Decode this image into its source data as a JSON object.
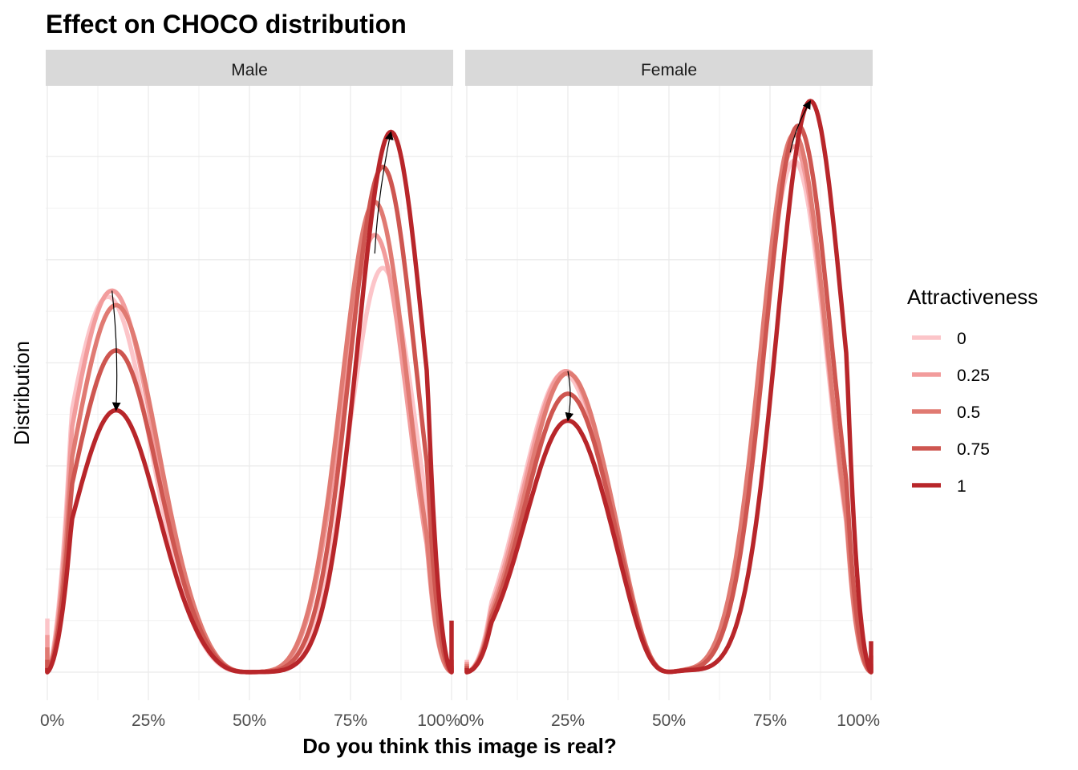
{
  "chart_data": {
    "type": "line",
    "title": "Effect on CHOCO distribution",
    "xlabel": "Do you think this image is real?",
    "ylabel": "Distribution",
    "xlim": [
      0,
      1
    ],
    "ylim": [
      0,
      2.75
    ],
    "x_ticks": [
      0,
      0.25,
      0.5,
      0.75,
      1
    ],
    "x_tick_labels": [
      "0%",
      "25%",
      "50%",
      "75%",
      "100%"
    ],
    "legend": {
      "title": "Attractiveness",
      "placement": "right",
      "entries": [
        "0",
        "0.25",
        "0.5",
        "0.75",
        "1"
      ],
      "colors": [
        "#fcc5c9",
        "#f29c9c",
        "#e07a72",
        "#ce5650",
        "#b8262a"
      ]
    },
    "grid": true,
    "panels": [
      {
        "strip": "Male",
        "series": [
          {
            "name": "0",
            "peaks": [
              {
                "x": 0.15,
                "y": 1.82
              },
              {
                "x": 0.83,
                "y": 1.96
              }
            ],
            "edge_left": 0.26,
            "edge_right": 0.02
          },
          {
            "name": "0.25",
            "peaks": [
              {
                "x": 0.16,
                "y": 1.85
              },
              {
                "x": 0.81,
                "y": 2.12
              }
            ],
            "edge_left": 0.18,
            "edge_right": 0.02
          },
          {
            "name": "0.5",
            "peaks": [
              {
                "x": 0.17,
                "y": 1.78
              },
              {
                "x": 0.81,
                "y": 2.28
              }
            ],
            "edge_left": 0.12,
            "edge_right": 0.03
          },
          {
            "name": "0.75",
            "peaks": [
              {
                "x": 0.17,
                "y": 1.56
              },
              {
                "x": 0.83,
                "y": 2.45
              }
            ],
            "edge_left": 0.06,
            "edge_right": 0.06
          },
          {
            "name": "1",
            "peaks": [
              {
                "x": 0.17,
                "y": 1.27
              },
              {
                "x": 0.85,
                "y": 2.62
              }
            ],
            "edge_left": 0.02,
            "edge_right": 0.25
          }
        ],
        "arrows": [
          {
            "from": {
              "x": 0.16,
              "y": 1.85
            },
            "to": {
              "x": 0.17,
              "y": 1.27
            }
          },
          {
            "from": {
              "x": 0.81,
              "y": 2.03
            },
            "to": {
              "x": 0.85,
              "y": 2.62
            }
          }
        ]
      },
      {
        "strip": "Female",
        "series": [
          {
            "name": "0",
            "peaks": [
              {
                "x": 0.24,
                "y": 1.45
              },
              {
                "x": 0.81,
                "y": 2.48
              }
            ],
            "edge_left": 0.06,
            "edge_right": 0.03
          },
          {
            "name": "0.25",
            "peaks": [
              {
                "x": 0.245,
                "y": 1.46
              },
              {
                "x": 0.81,
                "y": 2.55
              }
            ],
            "edge_left": 0.05,
            "edge_right": 0.03
          },
          {
            "name": "0.5",
            "peaks": [
              {
                "x": 0.25,
                "y": 1.45
              },
              {
                "x": 0.81,
                "y": 2.61
              }
            ],
            "edge_left": 0.04,
            "edge_right": 0.04
          },
          {
            "name": "0.75",
            "peaks": [
              {
                "x": 0.25,
                "y": 1.35
              },
              {
                "x": 0.82,
                "y": 2.65
              }
            ],
            "edge_left": 0.03,
            "edge_right": 0.08
          },
          {
            "name": "1",
            "peaks": [
              {
                "x": 0.25,
                "y": 1.22
              },
              {
                "x": 0.85,
                "y": 2.77
              }
            ],
            "edge_left": 0.02,
            "edge_right": 0.15
          }
        ],
        "arrows": [
          {
            "from": {
              "x": 0.25,
              "y": 1.46
            },
            "to": {
              "x": 0.25,
              "y": 1.22
            }
          },
          {
            "from": {
              "x": 0.8,
              "y": 2.52
            },
            "to": {
              "x": 0.85,
              "y": 2.77
            }
          }
        ]
      }
    ]
  }
}
